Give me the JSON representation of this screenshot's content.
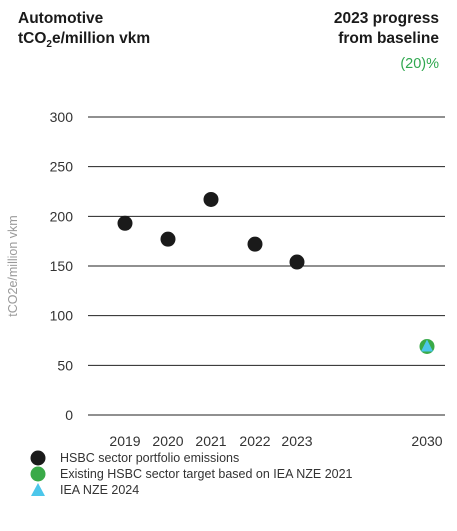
{
  "header": {
    "title_line1": "Automotive",
    "title_line2_prefix": "tCO",
    "title_line2_sub": "2",
    "title_line2_suffix": "e/million vkm",
    "progress_title_line1": "2023 progress",
    "progress_title_line2": "from baseline",
    "progress_value": "(20)%"
  },
  "chart_data": {
    "type": "scatter",
    "ylabel": "tCO2e/million vkm",
    "ylim": [
      0,
      300
    ],
    "yticks": [
      0,
      50,
      100,
      150,
      200,
      250,
      300
    ],
    "grid": true,
    "x_categories": [
      "2019",
      "2020",
      "2021",
      "2022",
      "2023",
      "2030"
    ],
    "series": [
      {
        "name": "HSBC sector portfolio emissions",
        "color": "#1a1a1a",
        "marker": "circle",
        "points": [
          {
            "x": "2019",
            "y": 193
          },
          {
            "x": "2020",
            "y": 177
          },
          {
            "x": "2021",
            "y": 217
          },
          {
            "x": "2022",
            "y": 172
          },
          {
            "x": "2023",
            "y": 154
          }
        ]
      },
      {
        "name": "Existing HSBC sector target based on IEA NZE 2021",
        "color": "#3aaa48",
        "marker": "circle",
        "points": [
          {
            "x": "2030",
            "y": 69
          }
        ]
      },
      {
        "name": "IEA NZE 2024",
        "color": "#4cc6ea",
        "marker": "triangle",
        "points": [
          {
            "x": "2030",
            "y": 69
          }
        ]
      }
    ],
    "legend_position": "bottom-left"
  }
}
